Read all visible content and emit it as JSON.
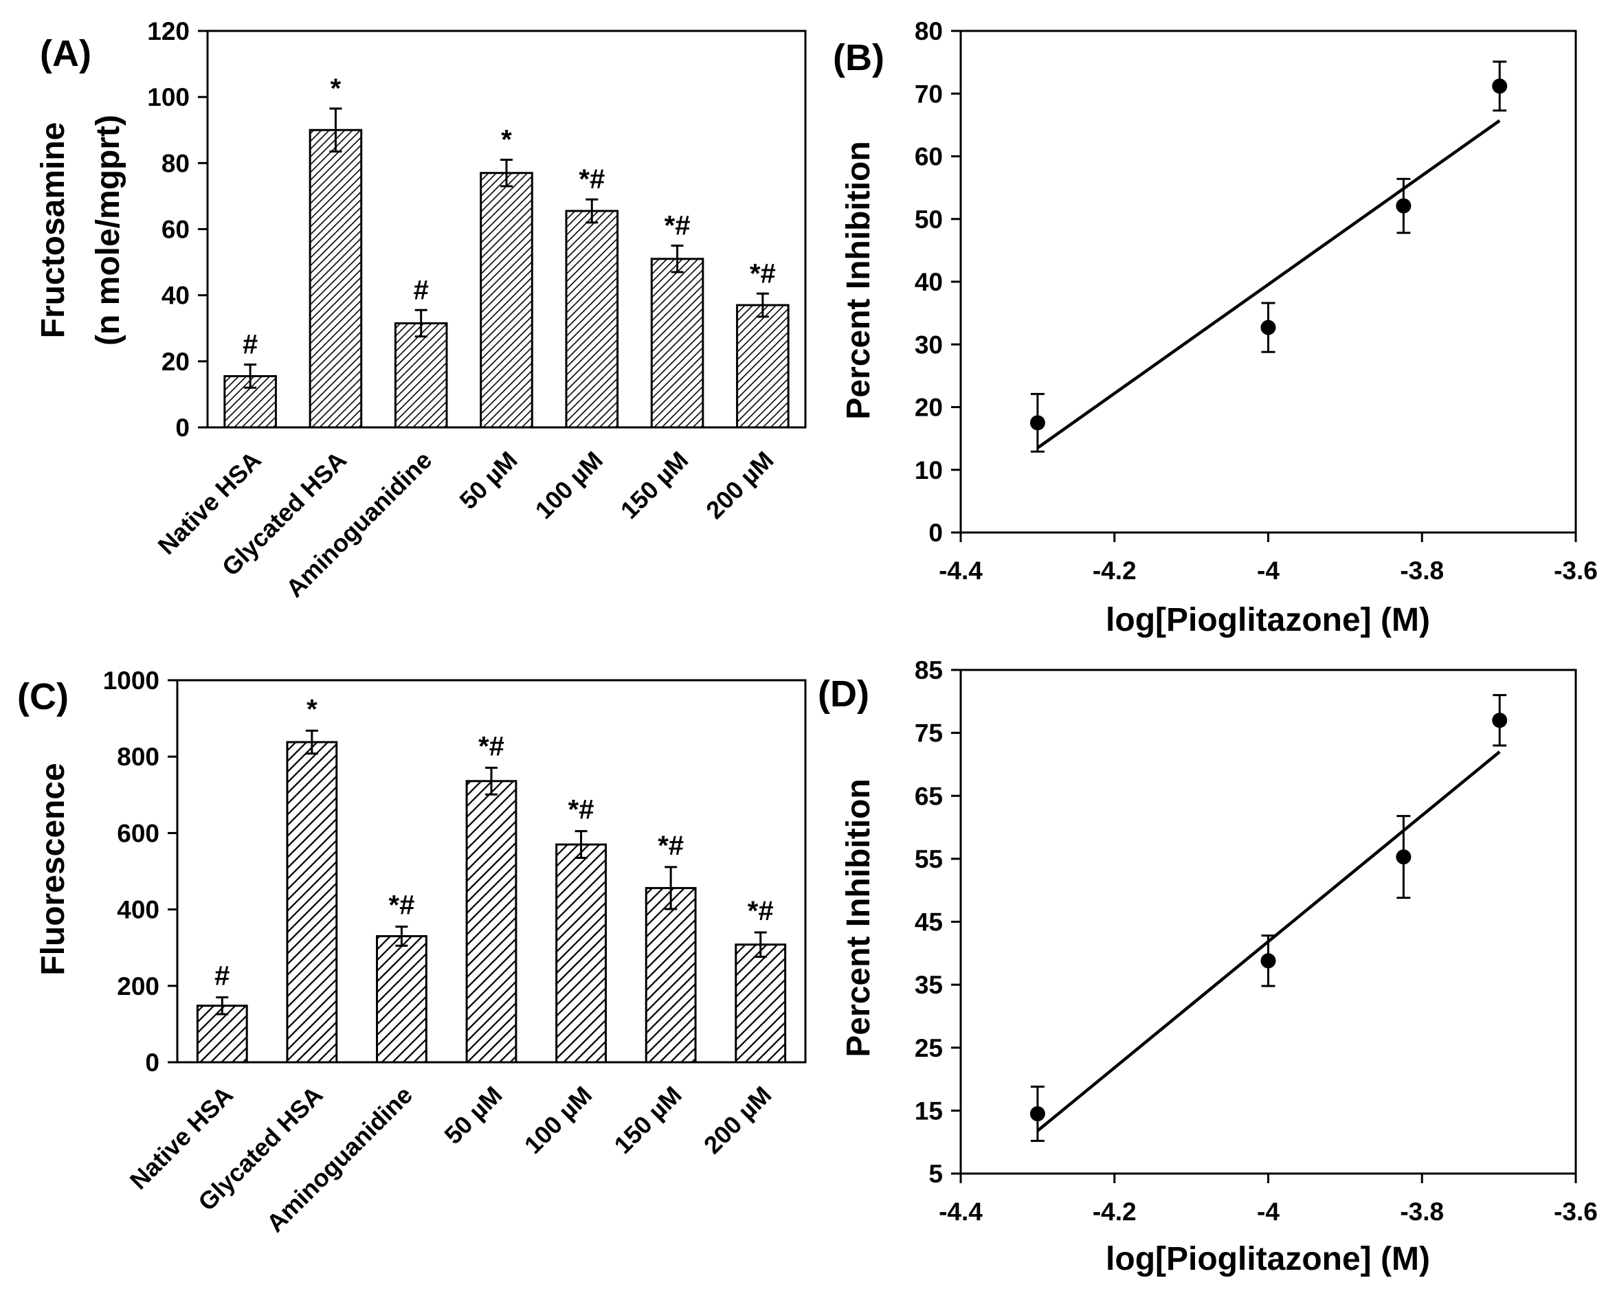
{
  "chart_data": [
    {
      "id": "A",
      "panel_label": "(A)",
      "type": "bar",
      "ylabel": "Fructosamine",
      "ylabel2": "(n mole/mgprt)",
      "categories": [
        "Native HSA",
        "Glycated HSA",
        "Aminoguanidine",
        "50 µM",
        "100 µM",
        "150 µM",
        "200 µM"
      ],
      "values": [
        15.5,
        90,
        31.5,
        77,
        65.5,
        51,
        37
      ],
      "errors": [
        3.5,
        6.5,
        4,
        4,
        3.5,
        4,
        3.5
      ],
      "significance": [
        "#",
        "*",
        "#",
        "*",
        "*#",
        "*#",
        "*#"
      ],
      "ylim": [
        0,
        120
      ],
      "yticks": [
        "0",
        "20",
        "40",
        "60",
        "80",
        "100",
        "120"
      ],
      "hatch": "diagonal",
      "colors": {
        "bar_fill": "#ffffff",
        "hatch": "#000000"
      }
    },
    {
      "id": "B",
      "panel_label": "(B)",
      "type": "scatter",
      "xlabel": "log[Pioglitazone] (M)",
      "ylabel": "Percent Inhibition",
      "x": [
        -4.3,
        -4.0,
        -3.824,
        -3.699
      ],
      "y": [
        17.5,
        32.7,
        52.1,
        71.2
      ],
      "errors": [
        4.6,
        3.9,
        4.3,
        3.9
      ],
      "trendline": {
        "x": [
          -4.3,
          -3.699
        ],
        "y": [
          13.5,
          65.7
        ]
      },
      "xlim": [
        -4.4,
        -3.6
      ],
      "ylim": [
        0,
        80
      ],
      "xticks": [
        "-4.4",
        "-4.2",
        "-4",
        "-3.8",
        "-3.6"
      ],
      "yticks": [
        "0",
        "10",
        "20",
        "30",
        "40",
        "50",
        "60",
        "70",
        "80"
      ]
    },
    {
      "id": "C",
      "panel_label": "(C)",
      "type": "bar",
      "ylabel": "Fluorescence",
      "categories": [
        "Native HSA",
        "Glycated HSA",
        "Aminoguanidine",
        "50 µM",
        "100 µM",
        "150 µM",
        "200 µM"
      ],
      "values": [
        148,
        838,
        330,
        736,
        570,
        456,
        308
      ],
      "errors": [
        22,
        30,
        25,
        35,
        35,
        55,
        32
      ],
      "significance": [
        "#",
        "*",
        "*#",
        "*#",
        "*#",
        "*#",
        "*#"
      ],
      "ylim": [
        0,
        1000
      ],
      "yticks": [
        "0",
        "200",
        "400",
        "600",
        "800",
        "1000"
      ],
      "hatch": "diagonal",
      "colors": {
        "bar_fill": "#ffffff",
        "hatch": "#000000"
      }
    },
    {
      "id": "D",
      "panel_label": "(D)",
      "type": "scatter",
      "xlabel": "log[Pioglitazone] (M)",
      "ylabel": "Percent Inhibition",
      "x": [
        -4.3,
        -4.0,
        -3.824,
        -3.699
      ],
      "y": [
        14.5,
        38.8,
        55.3,
        77.0
      ],
      "errors": [
        4.3,
        4.0,
        6.5,
        4.0
      ],
      "trendline": {
        "x": [
          -4.3,
          -3.699
        ],
        "y": [
          11.8,
          72.0
        ]
      },
      "xlim": [
        -4.4,
        -3.6
      ],
      "ylim": [
        5,
        85
      ],
      "xticks": [
        "-4.4",
        "-4.2",
        "-4",
        "-3.8",
        "-3.6"
      ],
      "yticks": [
        "5",
        "15",
        "25",
        "35",
        "45",
        "55",
        "65",
        "75",
        "85"
      ]
    }
  ]
}
